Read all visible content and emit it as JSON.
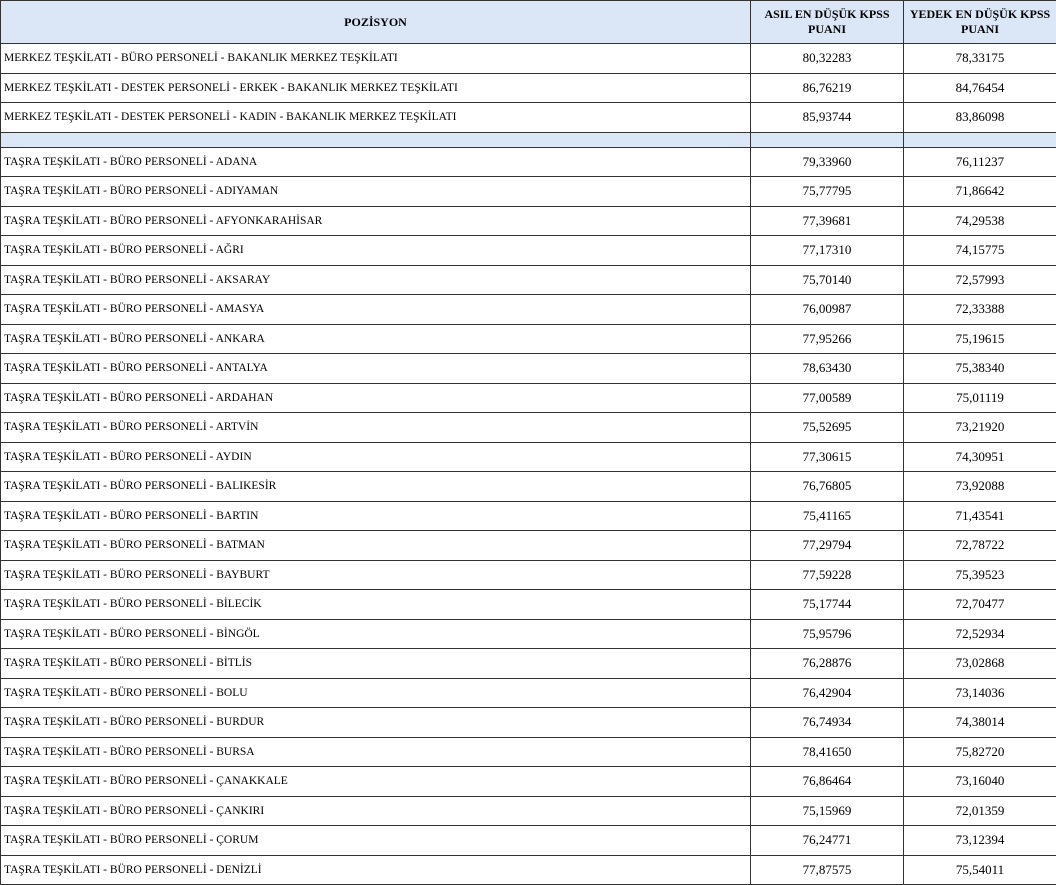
{
  "header": {
    "position": "POZİSYON",
    "asil": "ASIL EN DÜŞÜK KPSS PUANI",
    "yedek": "YEDEK EN DÜŞÜK KPSS PUANI"
  },
  "colors": {
    "header_bg": "#dbe6f7",
    "border": "#333333"
  },
  "merkez_rows": [
    {
      "pos": "MERKEZ TEŞKİLATI - BÜRO PERSONELİ - BAKANLIK MERKEZ TEŞKİLATI",
      "asil": "80,32283",
      "yedek": "78,33175"
    },
    {
      "pos": "MERKEZ TEŞKİLATI - DESTEK PERSONELİ - ERKEK - BAKANLIK MERKEZ TEŞKİLATI",
      "asil": "86,76219",
      "yedek": "84,76454"
    },
    {
      "pos": "MERKEZ TEŞKİLATI - DESTEK PERSONELİ - KADIN - BAKANLIK MERKEZ TEŞKİLATI",
      "asil": "85,93744",
      "yedek": "83,86098"
    }
  ],
  "tasra_rows": [
    {
      "pos": "TAŞRA TEŞKİLATI - BÜRO PERSONELİ - ADANA",
      "asil": "79,33960",
      "yedek": "76,11237"
    },
    {
      "pos": "TAŞRA TEŞKİLATI - BÜRO PERSONELİ - ADIYAMAN",
      "asil": "75,77795",
      "yedek": "71,86642"
    },
    {
      "pos": "TAŞRA TEŞKİLATI - BÜRO PERSONELİ - AFYONKARAHİSAR",
      "asil": "77,39681",
      "yedek": "74,29538"
    },
    {
      "pos": "TAŞRA TEŞKİLATI - BÜRO PERSONELİ - AĞRI",
      "asil": "77,17310",
      "yedek": "74,15775"
    },
    {
      "pos": "TAŞRA TEŞKİLATI - BÜRO PERSONELİ - AKSARAY",
      "asil": "75,70140",
      "yedek": "72,57993"
    },
    {
      "pos": "TAŞRA TEŞKİLATI - BÜRO PERSONELİ - AMASYA",
      "asil": "76,00987",
      "yedek": "72,33388"
    },
    {
      "pos": "TAŞRA TEŞKİLATI - BÜRO PERSONELİ - ANKARA",
      "asil": "77,95266",
      "yedek": "75,19615"
    },
    {
      "pos": "TAŞRA TEŞKİLATI - BÜRO PERSONELİ - ANTALYA",
      "asil": "78,63430",
      "yedek": "75,38340"
    },
    {
      "pos": "TAŞRA TEŞKİLATI - BÜRO PERSONELİ - ARDAHAN",
      "asil": "77,00589",
      "yedek": "75,01119"
    },
    {
      "pos": "TAŞRA TEŞKİLATI - BÜRO PERSONELİ - ARTVİN",
      "asil": "75,52695",
      "yedek": "73,21920"
    },
    {
      "pos": "TAŞRA TEŞKİLATI - BÜRO PERSONELİ - AYDIN",
      "asil": "77,30615",
      "yedek": "74,30951"
    },
    {
      "pos": "TAŞRA TEŞKİLATI - BÜRO PERSONELİ - BALIKESİR",
      "asil": "76,76805",
      "yedek": "73,92088"
    },
    {
      "pos": "TAŞRA TEŞKİLATI - BÜRO PERSONELİ - BARTIN",
      "asil": "75,41165",
      "yedek": "71,43541"
    },
    {
      "pos": "TAŞRA TEŞKİLATI - BÜRO PERSONELİ - BATMAN",
      "asil": "77,29794",
      "yedek": "72,78722"
    },
    {
      "pos": "TAŞRA TEŞKİLATI - BÜRO PERSONELİ - BAYBURT",
      "asil": "77,59228",
      "yedek": "75,39523"
    },
    {
      "pos": "TAŞRA TEŞKİLATI - BÜRO PERSONELİ - BİLECİK",
      "asil": "75,17744",
      "yedek": "72,70477"
    },
    {
      "pos": "TAŞRA TEŞKİLATI - BÜRO PERSONELİ - BİNGÖL",
      "asil": "75,95796",
      "yedek": "72,52934"
    },
    {
      "pos": "TAŞRA TEŞKİLATI - BÜRO PERSONELİ - BİTLİS",
      "asil": "76,28876",
      "yedek": "73,02868"
    },
    {
      "pos": "TAŞRA TEŞKİLATI - BÜRO PERSONELİ - BOLU",
      "asil": "76,42904",
      "yedek": "73,14036"
    },
    {
      "pos": "TAŞRA TEŞKİLATI - BÜRO PERSONELİ - BURDUR",
      "asil": "76,74934",
      "yedek": "74,38014"
    },
    {
      "pos": "TAŞRA TEŞKİLATI - BÜRO PERSONELİ - BURSA",
      "asil": "78,41650",
      "yedek": "75,82720"
    },
    {
      "pos": "TAŞRA TEŞKİLATI - BÜRO PERSONELİ - ÇANAKKALE",
      "asil": "76,86464",
      "yedek": "73,16040"
    },
    {
      "pos": "TAŞRA TEŞKİLATI - BÜRO PERSONELİ - ÇANKIRI",
      "asil": "75,15969",
      "yedek": "72,01359"
    },
    {
      "pos": "TAŞRA TEŞKİLATI - BÜRO PERSONELİ - ÇORUM",
      "asil": "76,24771",
      "yedek": "73,12394"
    },
    {
      "pos": "TAŞRA TEŞKİLATI - BÜRO PERSONELİ - DENİZLİ",
      "asil": "77,87575",
      "yedek": "75,54011"
    }
  ]
}
